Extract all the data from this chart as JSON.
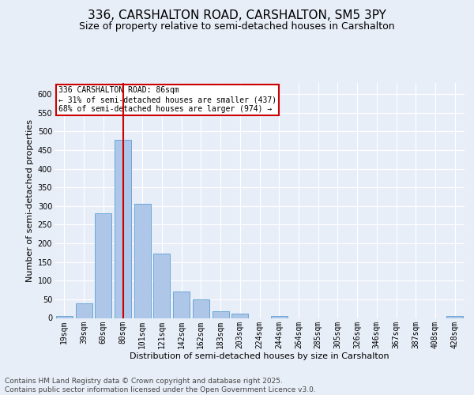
{
  "title": "336, CARSHALTON ROAD, CARSHALTON, SM5 3PY",
  "subtitle": "Size of property relative to semi-detached houses in Carshalton",
  "xlabel": "Distribution of semi-detached houses by size in Carshalton",
  "ylabel": "Number of semi-detached properties",
  "footer": "Contains HM Land Registry data © Crown copyright and database right 2025.\nContains public sector information licensed under the Open Government Licence v3.0.",
  "categories": [
    "19sqm",
    "39sqm",
    "60sqm",
    "80sqm",
    "101sqm",
    "121sqm",
    "142sqm",
    "162sqm",
    "183sqm",
    "203sqm",
    "224sqm",
    "244sqm",
    "264sqm",
    "285sqm",
    "305sqm",
    "326sqm",
    "346sqm",
    "367sqm",
    "387sqm",
    "408sqm",
    "428sqm"
  ],
  "values": [
    5,
    40,
    280,
    478,
    305,
    173,
    72,
    50,
    18,
    12,
    0,
    5,
    0,
    0,
    0,
    0,
    0,
    0,
    0,
    0,
    5
  ],
  "bar_color": "#aec6e8",
  "bar_edge_color": "#5a9fd4",
  "red_line_x": 3.0,
  "annotation_text": "336 CARSHALTON ROAD: 86sqm\n← 31% of semi-detached houses are smaller (437)\n68% of semi-detached houses are larger (974) →",
  "annotation_box_color": "#ffffff",
  "annotation_box_edge": "#cc0000",
  "ylim": [
    0,
    630
  ],
  "yticks": [
    0,
    50,
    100,
    150,
    200,
    250,
    300,
    350,
    400,
    450,
    500,
    550,
    600
  ],
  "bg_color": "#e8eef8",
  "plot_bg_color": "#e8eef8",
  "title_fontsize": 11,
  "subtitle_fontsize": 9,
  "axis_label_fontsize": 8,
  "tick_fontsize": 7,
  "footer_fontsize": 6.5
}
